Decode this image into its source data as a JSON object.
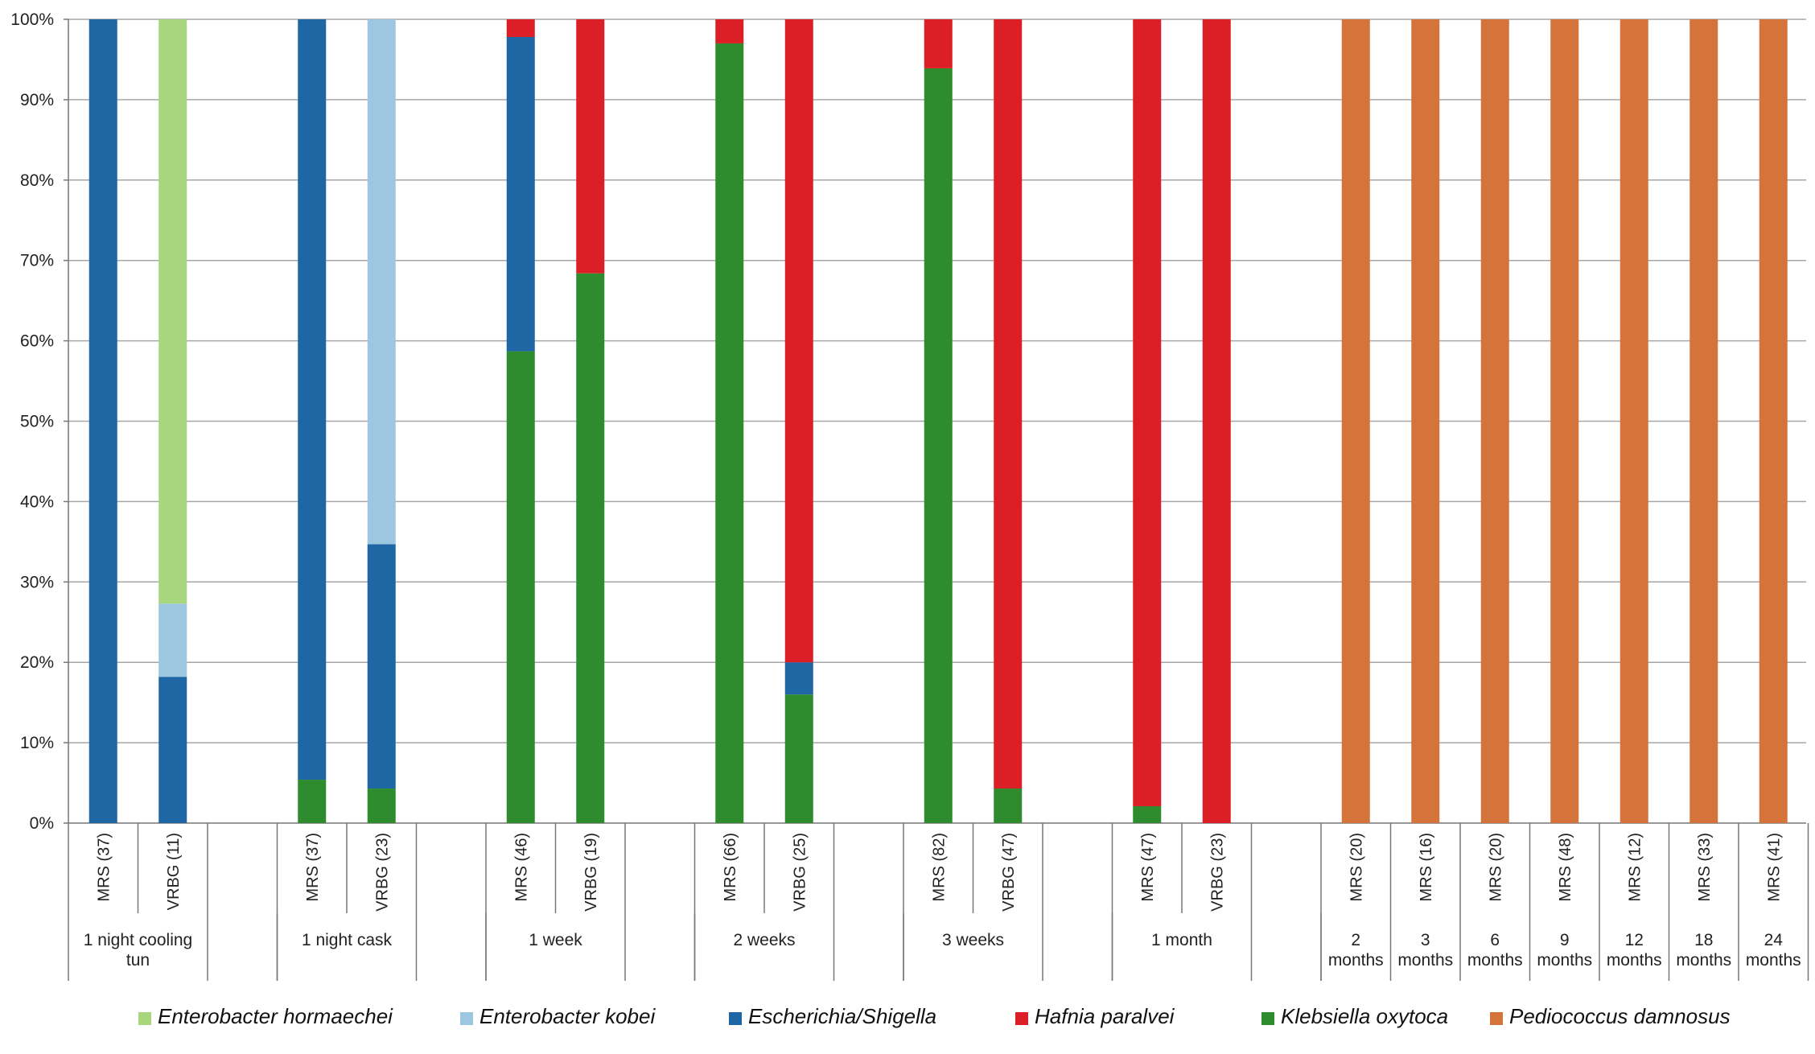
{
  "chart_data": {
    "type": "bar",
    "stacked": true,
    "percent": true,
    "ylim": [
      0,
      100
    ],
    "y_ticks": [
      "0%",
      "10%",
      "20%",
      "30%",
      "40%",
      "50%",
      "60%",
      "70%",
      "80%",
      "90%",
      "100%"
    ],
    "grid": true,
    "legend_position": "bottom",
    "groups": [
      {
        "label": "1 night cooling tun",
        "bars": [
          "MRS (37)",
          "VRBG (11)"
        ]
      },
      {
        "label": "1 night cask",
        "bars": [
          "MRS (37)",
          "VRBG (23)"
        ]
      },
      {
        "label": "1 week",
        "bars": [
          "MRS (46)",
          "VRBG (19)"
        ]
      },
      {
        "label": "2 weeks",
        "bars": [
          "MRS (66)",
          "VRBG (25)"
        ]
      },
      {
        "label": "3 weeks",
        "bars": [
          "MRS (82)",
          "VRBG (47)"
        ]
      },
      {
        "label": "1 month",
        "bars": [
          "MRS (47)",
          "VRBG (23)"
        ]
      },
      {
        "label": "2 months",
        "bars": [
          "MRS (20)"
        ]
      },
      {
        "label": "3 months",
        "bars": [
          "MRS (16)"
        ]
      },
      {
        "label": "6 months",
        "bars": [
          "MRS (20)"
        ]
      },
      {
        "label": "9 months",
        "bars": [
          "MRS (48)"
        ]
      },
      {
        "label": "12 months",
        "bars": [
          "MRS (12)"
        ]
      },
      {
        "label": "18 months",
        "bars": [
          "MRS (33)"
        ]
      },
      {
        "label": "24 months",
        "bars": [
          "MRS (41)"
        ]
      }
    ],
    "categories": [
      "MRS (37)",
      "VRBG (11)",
      "MRS (37)",
      "VRBG (23)",
      "MRS (46)",
      "VRBG (19)",
      "MRS (66)",
      "VRBG (25)",
      "MRS (82)",
      "VRBG (47)",
      "MRS (47)",
      "VRBG (23)",
      "MRS (20)",
      "MRS (16)",
      "MRS (20)",
      "MRS (48)",
      "MRS (12)",
      "MRS (33)",
      "MRS (41)"
    ],
    "series": [
      {
        "name": "Klebsiella oxytoca",
        "color": "#2e8b2e",
        "values": [
          0,
          0,
          5.4,
          4.3,
          58.7,
          68.4,
          97.0,
          16.0,
          93.9,
          4.3,
          2.1,
          0,
          0,
          0,
          0,
          0,
          0,
          0,
          0
        ]
      },
      {
        "name": "Escherichia/Shigella",
        "color": "#1f66a5",
        "values": [
          100,
          18.2,
          94.6,
          30.4,
          39.1,
          0,
          0,
          4.0,
          0,
          0,
          0,
          0,
          0,
          0,
          0,
          0,
          0,
          0,
          0
        ]
      },
      {
        "name": "Enterobacter kobei",
        "color": "#9dc6e0",
        "values": [
          0,
          9.1,
          0,
          65.3,
          0,
          0,
          0,
          0,
          0,
          0,
          0,
          0,
          0,
          0,
          0,
          0,
          0,
          0,
          0
        ]
      },
      {
        "name": "Enterobacter hormaechei",
        "color": "#a7d67e",
        "values": [
          0,
          72.7,
          0,
          0,
          0,
          0,
          0,
          0,
          0,
          0,
          0,
          0,
          0,
          0,
          0,
          0,
          0,
          0,
          0
        ]
      },
      {
        "name": "Hafnia paralvei",
        "color": "#dc1f26",
        "values": [
          0,
          0,
          0,
          0,
          2.2,
          31.6,
          3.0,
          80.0,
          6.1,
          95.7,
          97.9,
          100,
          0,
          0,
          0,
          0,
          0,
          0,
          0
        ]
      },
      {
        "name": "Pediococcus damnosus",
        "color": "#d4733a",
        "values": [
          0,
          0,
          0,
          0,
          0,
          0,
          0,
          0,
          0,
          0,
          0,
          0,
          100,
          100,
          100,
          100,
          100,
          100,
          100
        ]
      }
    ],
    "stack_order_note_free": true
  },
  "legend": [
    {
      "name": "Enterobacter hormaechei",
      "color": "#a7d67e"
    },
    {
      "name": "Enterobacter kobei",
      "color": "#9dc6e0"
    },
    {
      "name": "Escherichia/Shigella",
      "color": "#1f66a5"
    },
    {
      "name": "Hafnia paralvei",
      "color": "#dc1f26"
    },
    {
      "name": "Klebsiella oxytoca",
      "color": "#2e8b2e"
    },
    {
      "name": "Pediococcus damnosus",
      "color": "#d4733a"
    }
  ]
}
